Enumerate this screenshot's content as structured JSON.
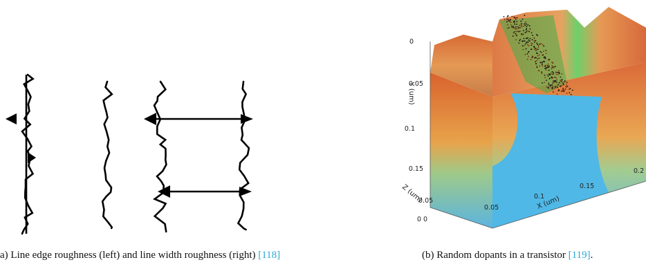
{
  "figure_a": {
    "caption": {
      "text": "a) Line edge roughness (left) and line width roughness (right) ",
      "ref": "[118]"
    }
  },
  "figure_b": {
    "caption": {
      "text": "(b) Random dopants in a transistor ",
      "ref": "[119]",
      "end": "."
    },
    "axes": {
      "y_label": "Y (um)",
      "y_ticks": [
        "0",
        "0.05",
        "0.1",
        "0.15"
      ],
      "z_label": "Z (um)",
      "z_ticks": [
        "0.05",
        "0"
      ],
      "x_label": "X (um)",
      "x_ticks": [
        "0",
        "0.05",
        "0.1",
        "0.15",
        "0.2"
      ]
    }
  }
}
